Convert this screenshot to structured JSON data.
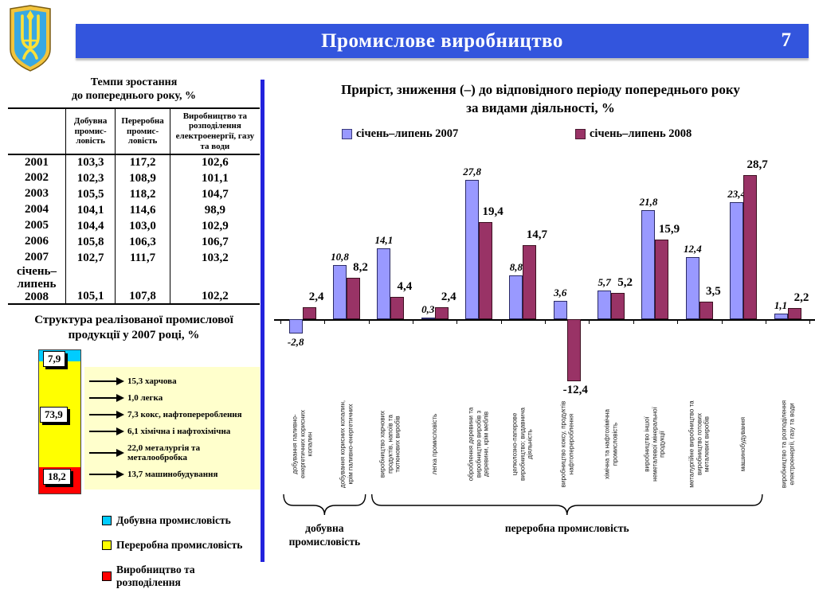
{
  "header": {
    "title": "Промислове виробництво",
    "page_number": "7"
  },
  "left_panel": {
    "table": {
      "title_line1": "Темпи зростання",
      "title_line2": "до попереднього року, %",
      "columns": [
        "Добувна промис- ловість",
        "Переробна промис- ловість",
        "Виробництво та розподілення електроенергії, газу та води"
      ],
      "rows": [
        {
          "year": "2001",
          "values": [
            "103,3",
            "117,2",
            "102,6"
          ]
        },
        {
          "year": "2002",
          "values": [
            "102,3",
            "108,9",
            "101,1"
          ]
        },
        {
          "year": "2003",
          "values": [
            "105,5",
            "118,2",
            "104,7"
          ]
        },
        {
          "year": "2004",
          "values": [
            "104,1",
            "114,6",
            "98,9"
          ]
        },
        {
          "year": "2005",
          "values": [
            "104,4",
            "103,0",
            "102,9"
          ]
        },
        {
          "year": "2006",
          "values": [
            "105,8",
            "106,3",
            "106,7"
          ]
        },
        {
          "year": "2007",
          "values": [
            "102,7",
            "111,7",
            "103,2"
          ]
        },
        {
          "year": "січень–липень 2008",
          "values": [
            "105,1",
            "107,8",
            "102,2"
          ]
        }
      ]
    },
    "structure": {
      "title_line1": "Структура реалізованої промислової",
      "title_line2": "продукції у 2007 році, %",
      "segments": [
        {
          "label": "7,9",
          "value": 7.9,
          "color": "#00CCFF"
        },
        {
          "label": "73,9",
          "value": 73.9,
          "color": "#FFFF00"
        },
        {
          "label": "18,2",
          "value": 18.2,
          "color": "#FF0000"
        }
      ],
      "branches": [
        "15,3 харчова",
        "1,0  легка",
        "7,3  кокс, нафтоперероблення",
        "6,1  хімічна і нафтохімічна",
        "22,0 металургія та металообробка",
        "13,7  машинобудування"
      ],
      "legend": [
        {
          "color": "#00CCFF",
          "label": "Добувна промисловість"
        },
        {
          "color": "#FFFF00",
          "label": "Переробна промисловість"
        },
        {
          "color": "#FF0000",
          "label": "Виробництво та розподілення"
        }
      ]
    }
  },
  "chart_data": [
    {
      "type": "bar",
      "title": "Приріст, зниження (–) до відповідного періоду попереднього року за видами діяльності, %",
      "categories": [
        "добування паливно-енергетичних корисних копалин",
        "добування корисних копалин, крім паливно-енергетичних",
        "виробництво харчових продуктів, напоїв та тютюнових виробів",
        "легка промисловість",
        "оброблення деревини та виробництво виробів з деревини, крім меблів",
        "целюлозно-паперове виробництво; видавнича діяльність",
        "виробництво коксу, продуктів нафтоперероблення",
        "хімічна та нафтохімічна промисловість",
        "виробництво іншої неметалевої мінеральної продукції",
        "металургійне виробництво та виробництво готових металевих виробів",
        "машинобудування",
        "виробництво та розподілення електроенергії, газу та води"
      ],
      "series": [
        {
          "name": "січень–липень 2007",
          "color": "#9999FF",
          "values": [
            -2.8,
            10.8,
            14.1,
            0.3,
            27.8,
            8.8,
            3.6,
            5.7,
            21.8,
            12.4,
            23.4,
            1.1
          ]
        },
        {
          "name": "січень–липень 2008",
          "color": "#993366",
          "values": [
            2.4,
            8.2,
            4.4,
            2.4,
            19.4,
            14.7,
            -12.4,
            5.2,
            15.9,
            3.5,
            28.7,
            2.2
          ]
        }
      ],
      "ylim": [
        -15,
        32
      ],
      "grid": false,
      "legend_position": "top",
      "groups": [
        {
          "label": "добувна промисловість",
          "from": 0,
          "to": 1
        },
        {
          "label": "переробна промисловість",
          "from": 2,
          "to": 10
        }
      ]
    },
    {
      "type": "bar",
      "subtype": "stacked-single-column",
      "title": "Структура реалізованої промислової продукції у 2007 році, %",
      "categories": [
        "Добувна промисловість",
        "Переробна промисловість",
        "Виробництво та розподілення"
      ],
      "values": [
        7.9,
        73.9,
        18.2
      ],
      "annotations": [
        "15,3 харчова",
        "1,0 легка",
        "7,3 кокс, нафтоперероблення",
        "6,1 хімічна і нафтохімічна",
        "22,0 металургія та металообробка",
        "13,7 машинобудування"
      ]
    },
    {
      "type": "table",
      "title": "Темпи зростання до попереднього року, %",
      "columns": [
        "Добувна промисловість",
        "Переробна промисловість",
        "Виробництво та розподілення електроенергії, газу та води"
      ],
      "rows": [
        [
          "2001",
          103.3,
          117.2,
          102.6
        ],
        [
          "2002",
          102.3,
          108.9,
          101.1
        ],
        [
          "2003",
          105.5,
          118.2,
          104.7
        ],
        [
          "2004",
          104.1,
          114.6,
          98.9
        ],
        [
          "2005",
          104.4,
          103.0,
          102.9
        ],
        [
          "2006",
          105.8,
          106.3,
          106.7
        ],
        [
          "2007",
          102.7,
          111.7,
          103.2
        ],
        [
          "січень–липень 2008",
          105.1,
          107.8,
          102.2
        ]
      ]
    }
  ]
}
